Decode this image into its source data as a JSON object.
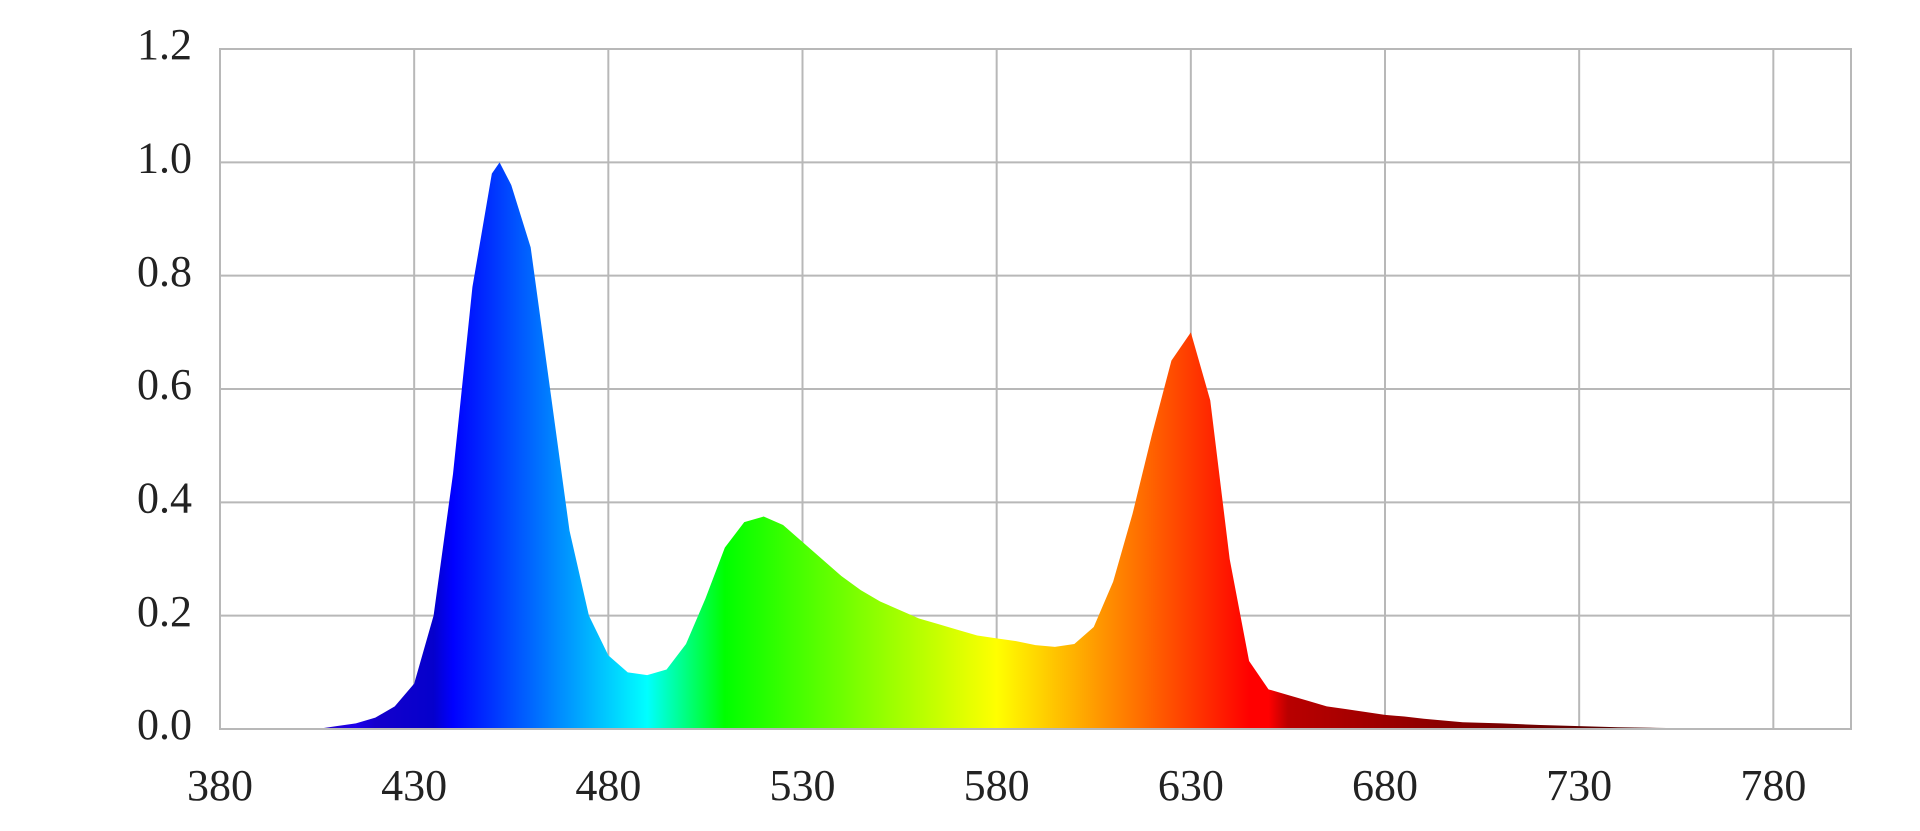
{
  "chart_data": {
    "type": "area",
    "x": [
      405,
      410,
      415,
      420,
      425,
      430,
      435,
      440,
      445,
      450,
      452,
      455,
      460,
      465,
      470,
      475,
      480,
      485,
      490,
      495,
      500,
      505,
      510,
      515,
      520,
      525,
      530,
      535,
      540,
      545,
      550,
      555,
      560,
      565,
      570,
      575,
      580,
      585,
      590,
      595,
      600,
      605,
      610,
      615,
      620,
      625,
      630,
      635,
      640,
      645,
      650,
      655,
      660,
      665,
      670,
      675,
      680,
      685,
      690,
      695,
      700,
      710,
      720,
      730,
      740,
      750,
      760,
      765
    ],
    "values": [
      0,
      0.005,
      0.01,
      0.02,
      0.04,
      0.08,
      0.2,
      0.45,
      0.78,
      0.98,
      1.0,
      0.96,
      0.85,
      0.6,
      0.35,
      0.2,
      0.13,
      0.1,
      0.095,
      0.105,
      0.15,
      0.23,
      0.32,
      0.365,
      0.375,
      0.36,
      0.33,
      0.3,
      0.27,
      0.245,
      0.225,
      0.21,
      0.195,
      0.185,
      0.175,
      0.165,
      0.16,
      0.155,
      0.148,
      0.145,
      0.15,
      0.18,
      0.26,
      0.38,
      0.52,
      0.65,
      0.7,
      0.58,
      0.3,
      0.12,
      0.07,
      0.06,
      0.05,
      0.04,
      0.035,
      0.03,
      0.025,
      0.022,
      0.018,
      0.015,
      0.012,
      0.01,
      0.007,
      0.005,
      0.003,
      0.002,
      0.001,
      0
    ],
    "xlim": [
      380,
      800
    ],
    "xticks": [
      380,
      430,
      480,
      530,
      580,
      630,
      680,
      730,
      780
    ],
    "ylim": [
      0,
      1.2
    ],
    "yticks": [
      {
        "value": 0,
        "label": "0.0"
      },
      0.2,
      0.4,
      0.6,
      0.8,
      {
        "value": 1,
        "label": "1.0"
      },
      1.2
    ],
    "grid": true
  }
}
